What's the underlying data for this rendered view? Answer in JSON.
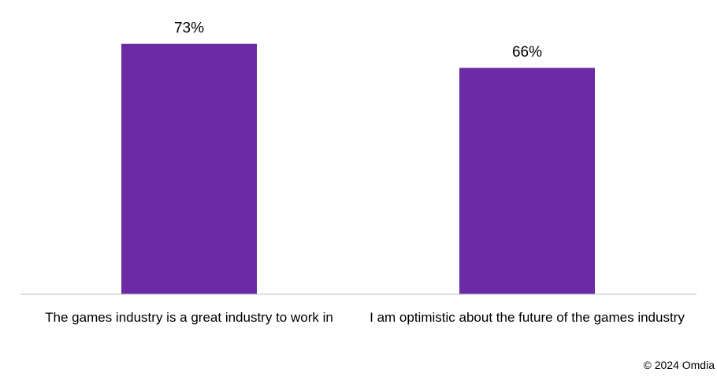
{
  "chart_data": {
    "type": "bar",
    "categories": [
      "The games industry is a great industry to work in",
      "I am optimistic about the future of the games industry"
    ],
    "values": [
      73,
      66
    ],
    "data_labels": [
      "73%",
      "66%"
    ],
    "unit": "%",
    "ylim": [
      0,
      80
    ],
    "grid": false,
    "legend": "none",
    "bar_color": "#6B2BA5",
    "axis_color": "#BFBFBF"
  },
  "footer": {
    "copyright": "© 2024 Omdia"
  }
}
